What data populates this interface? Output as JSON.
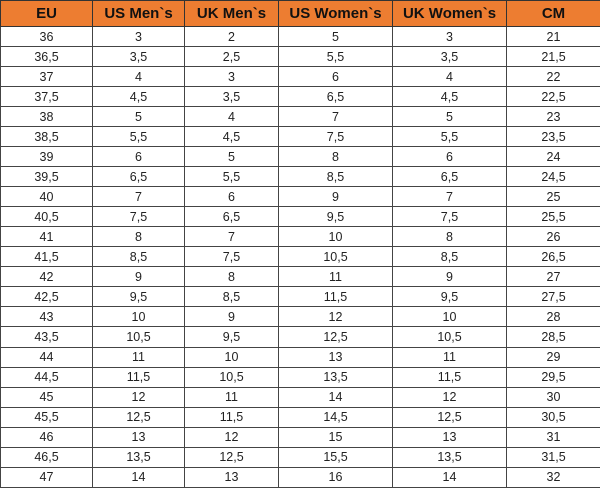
{
  "colors": {
    "header_bg": "#ED7D31"
  },
  "table": {
    "headers": [
      "EU",
      "US Men`s",
      "UK Men`s",
      "US Women`s",
      "UK Women`s",
      "CM"
    ],
    "rows": [
      [
        "36",
        "3",
        "2",
        "5",
        "3",
        "21"
      ],
      [
        "36,5",
        "3,5",
        "2,5",
        "5,5",
        "3,5",
        "21,5"
      ],
      [
        "37",
        "4",
        "3",
        "6",
        "4",
        "22"
      ],
      [
        "37,5",
        "4,5",
        "3,5",
        "6,5",
        "4,5",
        "22,5"
      ],
      [
        "38",
        "5",
        "4",
        "7",
        "5",
        "23"
      ],
      [
        "38,5",
        "5,5",
        "4,5",
        "7,5",
        "5,5",
        "23,5"
      ],
      [
        "39",
        "6",
        "5",
        "8",
        "6",
        "24"
      ],
      [
        "39,5",
        "6,5",
        "5,5",
        "8,5",
        "6,5",
        "24,5"
      ],
      [
        "40",
        "7",
        "6",
        "9",
        "7",
        "25"
      ],
      [
        "40,5",
        "7,5",
        "6,5",
        "9,5",
        "7,5",
        "25,5"
      ],
      [
        "41",
        "8",
        "7",
        "10",
        "8",
        "26"
      ],
      [
        "41,5",
        "8,5",
        "7,5",
        "10,5",
        "8,5",
        "26,5"
      ],
      [
        "42",
        "9",
        "8",
        "11",
        "9",
        "27"
      ],
      [
        "42,5",
        "9,5",
        "8,5",
        "11,5",
        "9,5",
        "27,5"
      ],
      [
        "43",
        "10",
        "9",
        "12",
        "10",
        "28"
      ],
      [
        "43,5",
        "10,5",
        "9,5",
        "12,5",
        "10,5",
        "28,5"
      ],
      [
        "44",
        "11",
        "10",
        "13",
        "11",
        "29"
      ],
      [
        "44,5",
        "11,5",
        "10,5",
        "13,5",
        "11,5",
        "29,5"
      ],
      [
        "45",
        "12",
        "11",
        "14",
        "12",
        "30"
      ],
      [
        "45,5",
        "12,5",
        "11,5",
        "14,5",
        "12,5",
        "30,5"
      ],
      [
        "46",
        "13",
        "12",
        "15",
        "13",
        "31"
      ],
      [
        "46,5",
        "13,5",
        "12,5",
        "15,5",
        "13,5",
        "31,5"
      ],
      [
        "47",
        "14",
        "13",
        "16",
        "14",
        "32"
      ]
    ]
  }
}
